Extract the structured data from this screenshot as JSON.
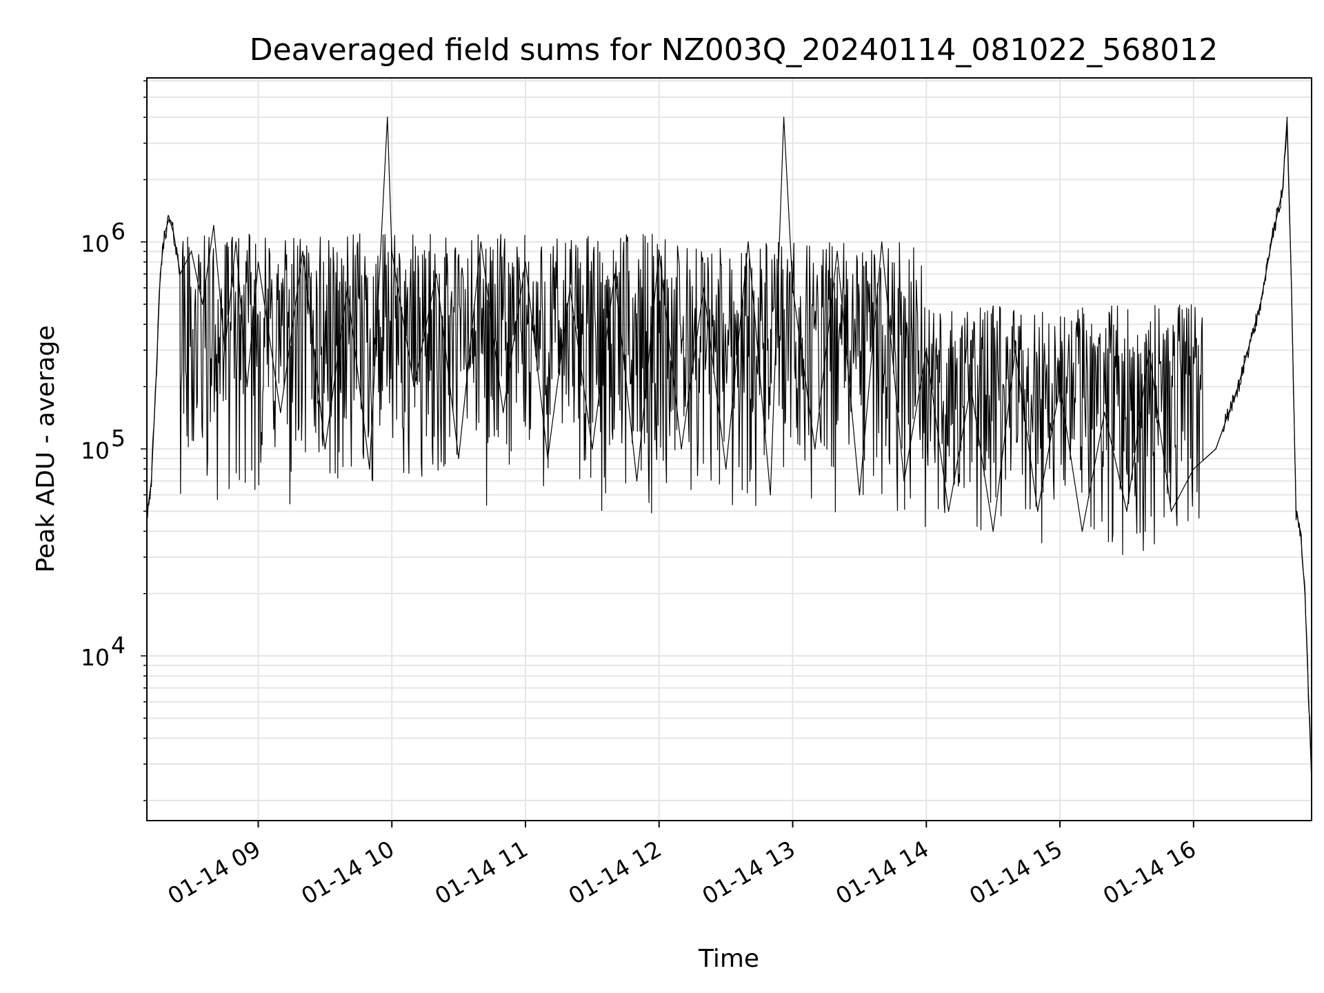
{
  "chart_data": {
    "type": "line",
    "title": "Deaveraged field sums for NZ003Q_20240114_081022_568012",
    "xlabel": "Time",
    "ylabel": "Peak ADU - average",
    "y_scale": "log",
    "ylim": [
      1600,
      6200000
    ],
    "xlim": [
      "2024-01-14 08:10",
      "2024-01-14 16:53"
    ],
    "x_tick_labels": [
      "01-14 09",
      "01-14 10",
      "01-14 11",
      "01-14 12",
      "01-14 13",
      "01-14 14",
      "01-14 15",
      "01-14 16"
    ],
    "y_tick_labels": [
      {
        "base": "10",
        "exp": "4"
      },
      {
        "base": "10",
        "exp": "5"
      },
      {
        "base": "10",
        "exp": "6"
      }
    ],
    "grid": true,
    "legend": "none",
    "line_color": "#000000",
    "series": [
      {
        "x": [
          "2024-01-14 08:10",
          "2024-01-14 08:12",
          "2024-01-14 08:14",
          "2024-01-14 08:16",
          "2024-01-14 08:18",
          "2024-01-14 08:20",
          "2024-01-14 08:22",
          "2024-01-14 08:25",
          "2024-01-14 08:30",
          "2024-01-14 08:35",
          "2024-01-14 08:40",
          "2024-01-14 08:45",
          "2024-01-14 08:50",
          "2024-01-14 08:55",
          "2024-01-14 09:00",
          "2024-01-14 09:10",
          "2024-01-14 09:20",
          "2024-01-14 09:30",
          "2024-01-14 09:40",
          "2024-01-14 09:50",
          "2024-01-14 09:58",
          "2024-01-14 10:00",
          "2024-01-14 10:10",
          "2024-01-14 10:20",
          "2024-01-14 10:30",
          "2024-01-14 10:40",
          "2024-01-14 10:50",
          "2024-01-14 11:00",
          "2024-01-14 11:10",
          "2024-01-14 11:20",
          "2024-01-14 11:30",
          "2024-01-14 11:40",
          "2024-01-14 11:50",
          "2024-01-14 12:00",
          "2024-01-14 12:10",
          "2024-01-14 12:20",
          "2024-01-14 12:30",
          "2024-01-14 12:40",
          "2024-01-14 12:50",
          "2024-01-14 12:56",
          "2024-01-14 13:00",
          "2024-01-14 13:10",
          "2024-01-14 13:20",
          "2024-01-14 13:30",
          "2024-01-14 13:40",
          "2024-01-14 13:50",
          "2024-01-14 14:00",
          "2024-01-14 14:10",
          "2024-01-14 14:20",
          "2024-01-14 14:30",
          "2024-01-14 14:40",
          "2024-01-14 14:50",
          "2024-01-14 15:00",
          "2024-01-14 15:10",
          "2024-01-14 15:20",
          "2024-01-14 15:30",
          "2024-01-14 15:40",
          "2024-01-14 15:50",
          "2024-01-14 16:00",
          "2024-01-14 16:10",
          "2024-01-14 16:20",
          "2024-01-14 16:30",
          "2024-01-14 16:35",
          "2024-01-14 16:40",
          "2024-01-14 16:42",
          "2024-01-14 16:44",
          "2024-01-14 16:46",
          "2024-01-14 16:48",
          "2024-01-14 16:50",
          "2024-01-14 16:52",
          "2024-01-14 16:53"
        ],
        "y": [
          48000,
          70000,
          200000,
          700000,
          1100000,
          1300000,
          1100000,
          700000,
          900000,
          500000,
          1200000,
          300000,
          1000000,
          200000,
          800000,
          150000,
          900000,
          100000,
          600000,
          80000,
          4000000,
          900000,
          200000,
          700000,
          90000,
          1000000,
          150000,
          800000,
          90000,
          600000,
          100000,
          700000,
          70000,
          900000,
          100000,
          600000,
          80000,
          1000000,
          60000,
          4000000,
          600000,
          100000,
          900000,
          60000,
          1000000,
          70000,
          300000,
          50000,
          200000,
          40000,
          300000,
          50000,
          200000,
          40000,
          150000,
          50000,
          300000,
          50000,
          80000,
          100000,
          200000,
          500000,
          1000000,
          1800000,
          4000000,
          600000,
          50000,
          40000,
          20000,
          5000,
          2500
        ]
      }
    ]
  }
}
